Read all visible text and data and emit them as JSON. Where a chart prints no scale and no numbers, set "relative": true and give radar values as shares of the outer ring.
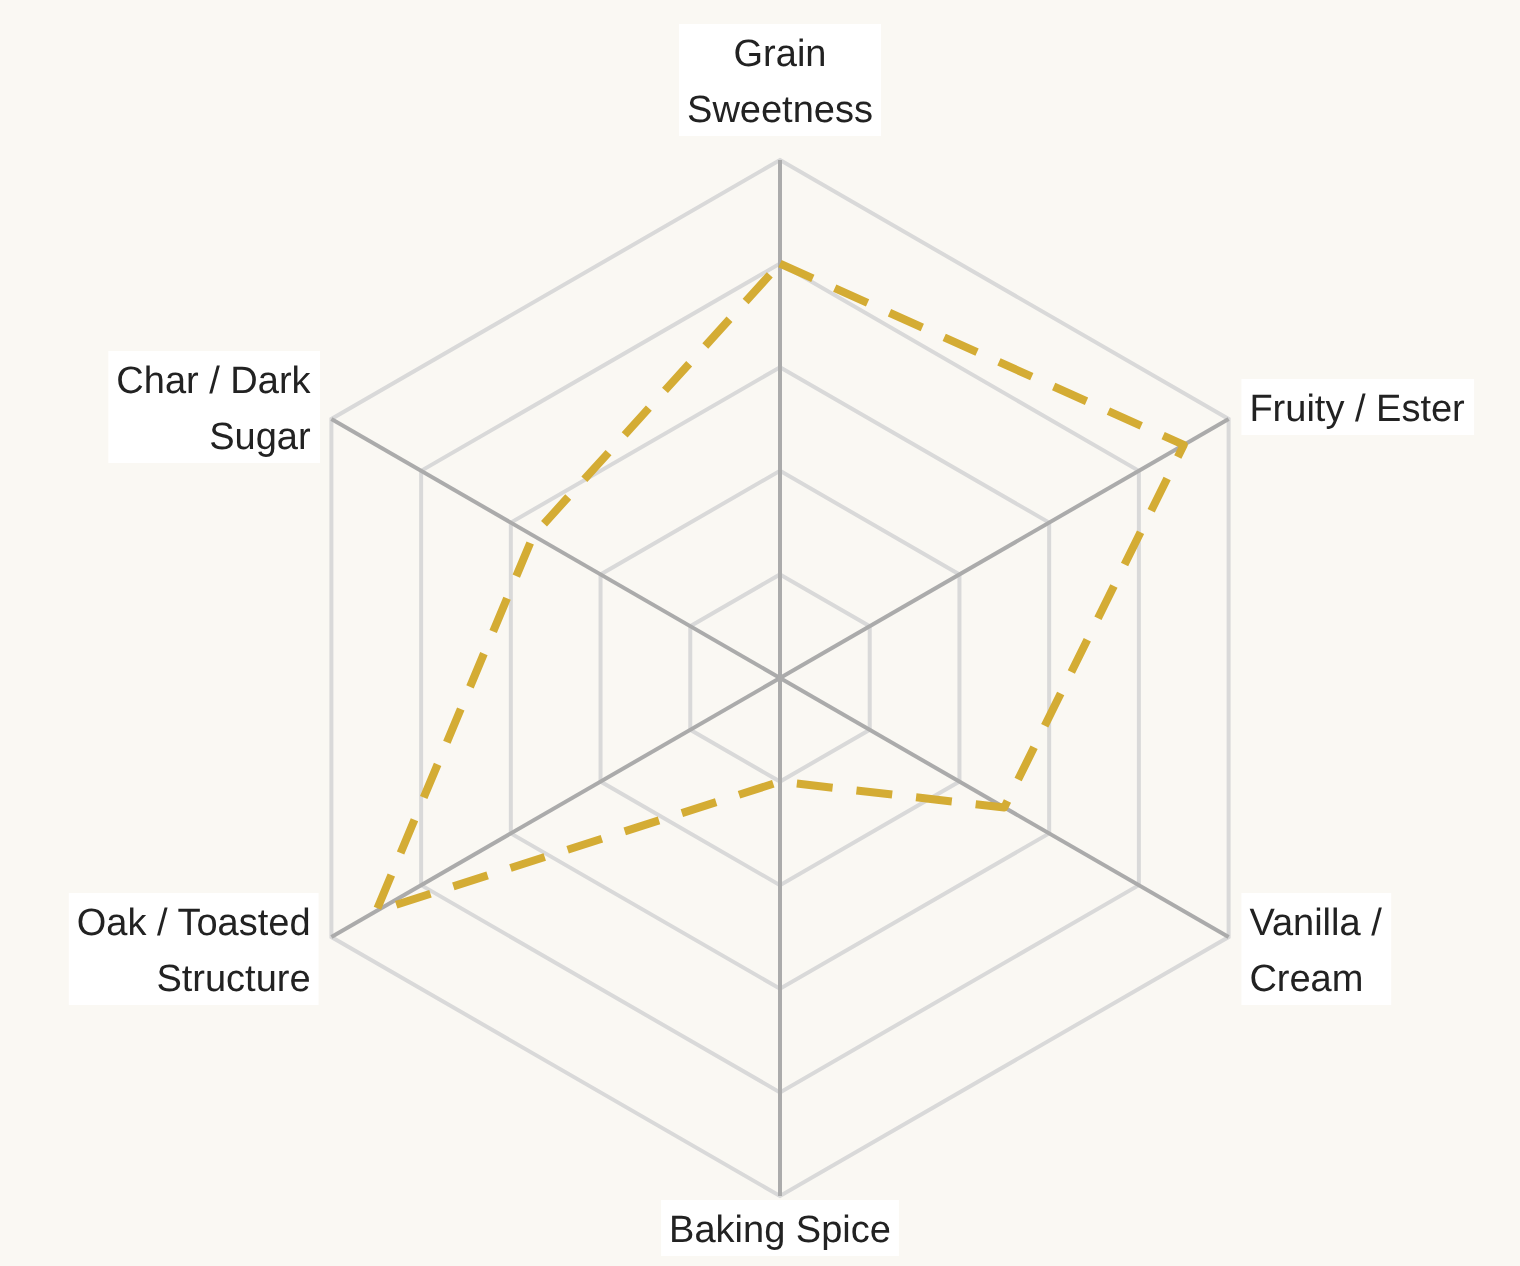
{
  "chart_data": {
    "type": "radar",
    "relative": true,
    "categories": [
      "Grain Sweetness",
      "Fruity / Ester",
      "Vanilla / Cream",
      "Baking Spice",
      "Oak / Toasted Structure",
      "Char / Dark Sugar"
    ],
    "series": [
      {
        "color": "#d4ac34",
        "values": [
          0.8,
          0.9,
          0.5,
          0.2,
          0.9,
          0.55
        ]
      }
    ],
    "grid": true,
    "line_style": "dashed",
    "marker": "none"
  }
}
